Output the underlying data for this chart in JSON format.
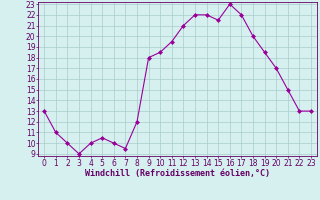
{
  "x": [
    0,
    1,
    2,
    3,
    4,
    5,
    6,
    7,
    8,
    9,
    10,
    11,
    12,
    13,
    14,
    15,
    16,
    17,
    18,
    19,
    20,
    21,
    22,
    23
  ],
  "y": [
    13,
    11,
    10,
    9,
    10,
    10.5,
    10,
    9.5,
    12,
    18,
    18.5,
    19.5,
    21,
    22,
    22,
    21.5,
    23,
    22,
    20,
    18.5,
    17,
    15,
    13,
    13
  ],
  "line_color": "#990099",
  "marker": "D",
  "marker_size": 2,
  "bg_color": "#d6f0f0",
  "grid_color": "#aacccc",
  "xlabel": "Windchill (Refroidissement éolien,°C)",
  "xlabel_color": "#660066",
  "xlabel_fontsize": 6.0,
  "ylim": [
    9,
    23
  ],
  "xlim": [
    -0.5,
    23.5
  ],
  "yticks": [
    9,
    10,
    11,
    12,
    13,
    14,
    15,
    16,
    17,
    18,
    19,
    20,
    21,
    22,
    23
  ],
  "xticks": [
    0,
    1,
    2,
    3,
    4,
    5,
    6,
    7,
    8,
    9,
    10,
    11,
    12,
    13,
    14,
    15,
    16,
    17,
    18,
    19,
    20,
    21,
    22,
    23
  ],
  "tick_fontsize": 5.5,
  "tick_color": "#660066",
  "spine_color": "#660066"
}
